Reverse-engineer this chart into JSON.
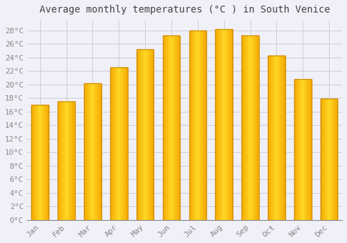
{
  "title": "Average monthly temperatures (°C ) in South Venice",
  "months": [
    "Jan",
    "Feb",
    "Mar",
    "Apr",
    "May",
    "Jun",
    "Jul",
    "Aug",
    "Sep",
    "Oct",
    "Nov",
    "Dec"
  ],
  "values": [
    17.0,
    17.5,
    20.2,
    22.5,
    25.2,
    27.3,
    28.0,
    28.2,
    27.2,
    24.3,
    20.8,
    17.9
  ],
  "bar_color_center": "#FFD040",
  "bar_color_edge": "#F4A800",
  "bar_outline_color": "#CC8800",
  "background_color": "#F0F0F8",
  "plot_bg_color": "#F0F0F8",
  "grid_color": "#CCCCDD",
  "ylabel_values": [
    0,
    2,
    4,
    6,
    8,
    10,
    12,
    14,
    16,
    18,
    20,
    22,
    24,
    26,
    28
  ],
  "ylim": [
    0,
    29.5
  ],
  "title_fontsize": 10,
  "tick_fontsize": 8,
  "title_color": "#444444",
  "tick_color": "#888888",
  "font_family": "monospace"
}
